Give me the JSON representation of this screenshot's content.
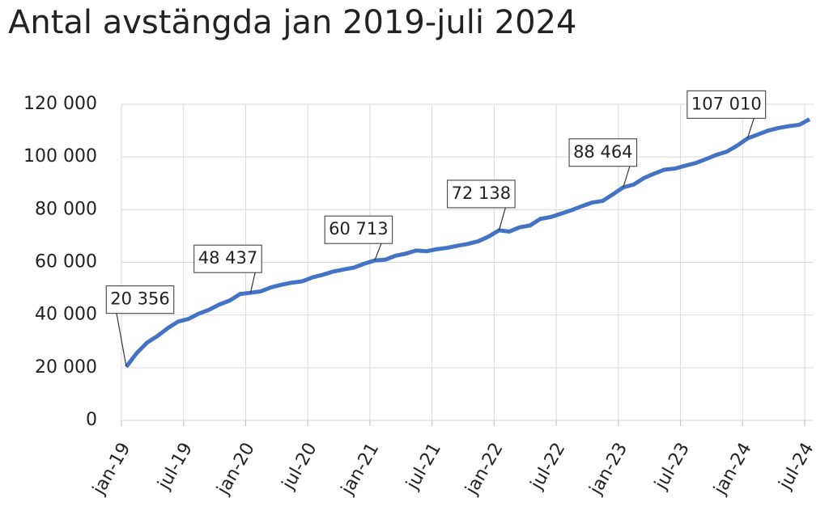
{
  "chart_data": {
    "type": "line",
    "title": "Antal avstängda jan 2019-juli 2024",
    "categories": [
      "jan-19",
      null,
      null,
      null,
      null,
      null,
      "jul-19",
      null,
      null,
      null,
      null,
      null,
      "jan-20",
      null,
      null,
      null,
      null,
      null,
      "jul-20",
      null,
      null,
      null,
      null,
      null,
      "jan-21",
      null,
      null,
      null,
      null,
      null,
      "jul-21",
      null,
      null,
      null,
      null,
      null,
      "jan-22",
      null,
      null,
      null,
      null,
      null,
      "jul-22",
      null,
      null,
      null,
      null,
      null,
      "jan-23",
      null,
      null,
      null,
      null,
      null,
      "jul-23",
      null,
      null,
      null,
      null,
      null,
      "jan-24",
      null,
      null,
      null,
      null,
      null,
      "jul-24"
    ],
    "series": [
      {
        "color": "#4472c4",
        "values": [
          20356,
          25500,
          29500,
          32000,
          35000,
          37500,
          38500,
          40500,
          42000,
          44000,
          45500,
          48000,
          48437,
          49000,
          50500,
          51500,
          52300,
          52800,
          54300,
          55300,
          56500,
          57300,
          58000,
          59500,
          60713,
          61000,
          62500,
          63300,
          64500,
          64200,
          65000,
          65500,
          66300,
          67000,
          68000,
          69800,
          72138,
          71700,
          73300,
          74000,
          76500,
          77200,
          78500,
          79800,
          81300,
          82700,
          83300,
          85800,
          88464,
          89500,
          92000,
          93700,
          95200,
          95600,
          96700,
          97700,
          99200,
          100800,
          102000,
          104300,
          107010,
          108500,
          110000,
          111000,
          111700,
          112200,
          114300
        ],
        "value_labels": [
          "20 356",
          null,
          null,
          null,
          null,
          null,
          null,
          null,
          null,
          null,
          null,
          null,
          "48 437",
          null,
          null,
          null,
          null,
          null,
          null,
          null,
          null,
          null,
          null,
          null,
          "60 713",
          null,
          null,
          null,
          null,
          null,
          null,
          null,
          null,
          null,
          null,
          null,
          "72 138",
          null,
          null,
          null,
          null,
          null,
          null,
          null,
          null,
          null,
          null,
          null,
          "88 464",
          null,
          null,
          null,
          null,
          null,
          null,
          null,
          null,
          null,
          null,
          null,
          "107 010",
          null,
          null,
          null,
          null,
          null,
          null
        ]
      }
    ],
    "ylim": [
      0,
      120000
    ],
    "yticks": [
      0,
      {
        "value": 20000,
        "label": "20 000"
      },
      {
        "value": 40000,
        "label": "40 000"
      },
      {
        "value": 60000,
        "label": "60 000"
      },
      {
        "value": 80000,
        "label": "80 000"
      },
      {
        "value": 100000,
        "label": "100 000"
      },
      {
        "value": 120000,
        "label": "120 000"
      }
    ],
    "grid": true
  }
}
